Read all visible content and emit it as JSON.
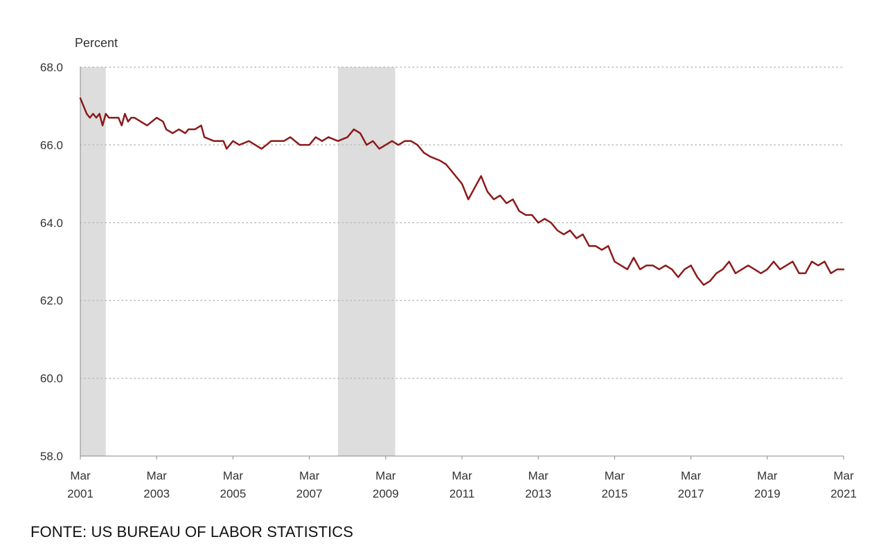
{
  "source_note": "FONTE: US BUREAU OF LABOR STATISTICS",
  "chart_data": {
    "type": "line",
    "ylabel": "Percent",
    "xlabel": "",
    "ylim": [
      58.0,
      68.0
    ],
    "yticks": [
      "68.0",
      "66.0",
      "64.0",
      "62.0",
      "60.0",
      "58.0"
    ],
    "yticks_values": [
      68,
      66,
      64,
      62,
      60,
      58
    ],
    "grid": "horizontal dotted",
    "x_start": "2001-03",
    "x_end": "2021-03",
    "xticks": [
      {
        "date": "2001-03",
        "month": "Mar",
        "year": "2001"
      },
      {
        "date": "2003-03",
        "month": "Mar",
        "year": "2003"
      },
      {
        "date": "2005-03",
        "month": "Mar",
        "year": "2005"
      },
      {
        "date": "2007-03",
        "month": "Mar",
        "year": "2007"
      },
      {
        "date": "2009-03",
        "month": "Mar",
        "year": "2009"
      },
      {
        "date": "2011-03",
        "month": "Mar",
        "year": "2011"
      },
      {
        "date": "2013-03",
        "month": "Mar",
        "year": "2013"
      },
      {
        "date": "2015-03",
        "month": "Mar",
        "year": "2015"
      },
      {
        "date": "2017-03",
        "month": "Mar",
        "year": "2017"
      },
      {
        "date": "2019-03",
        "month": "Mar",
        "year": "2019"
      },
      {
        "date": "2021-03",
        "month": "Mar",
        "year": "2021"
      }
    ],
    "shaded_periods": [
      {
        "start": "2001-03",
        "end": "2001-11"
      },
      {
        "start": "2007-12",
        "end": "2009-06"
      }
    ],
    "colors": {
      "line": "#8b1a1a",
      "shade": "#dddddd",
      "grid": "#bbbbbb",
      "axis": "#888888"
    },
    "series": [
      {
        "points": [
          [
            "2001-03",
            67.2
          ],
          [
            "2001-04",
            67.0
          ],
          [
            "2001-05",
            66.8
          ],
          [
            "2001-06",
            66.7
          ],
          [
            "2001-07",
            66.8
          ],
          [
            "2001-08",
            66.7
          ],
          [
            "2001-09",
            66.8
          ],
          [
            "2001-10",
            66.5
          ],
          [
            "2001-11",
            66.8
          ],
          [
            "2001-12",
            66.7
          ],
          [
            "2002-03",
            66.7
          ],
          [
            "2002-04",
            66.5
          ],
          [
            "2002-05",
            66.8
          ],
          [
            "2002-06",
            66.6
          ],
          [
            "2002-07",
            66.7
          ],
          [
            "2002-08",
            66.7
          ],
          [
            "2002-10",
            66.6
          ],
          [
            "2002-12",
            66.5
          ],
          [
            "2003-03",
            66.7
          ],
          [
            "2003-05",
            66.6
          ],
          [
            "2003-06",
            66.4
          ],
          [
            "2003-08",
            66.3
          ],
          [
            "2003-10",
            66.4
          ],
          [
            "2003-12",
            66.3
          ],
          [
            "2004-01",
            66.4
          ],
          [
            "2004-03",
            66.4
          ],
          [
            "2004-05",
            66.5
          ],
          [
            "2004-06",
            66.2
          ],
          [
            "2004-09",
            66.1
          ],
          [
            "2004-12",
            66.1
          ],
          [
            "2005-01",
            65.9
          ],
          [
            "2005-03",
            66.1
          ],
          [
            "2005-05",
            66.0
          ],
          [
            "2005-08",
            66.1
          ],
          [
            "2005-10",
            66.0
          ],
          [
            "2005-12",
            65.9
          ],
          [
            "2006-03",
            66.1
          ],
          [
            "2006-05",
            66.1
          ],
          [
            "2006-07",
            66.1
          ],
          [
            "2006-09",
            66.2
          ],
          [
            "2006-12",
            66.0
          ],
          [
            "2007-03",
            66.0
          ],
          [
            "2007-05",
            66.2
          ],
          [
            "2007-07",
            66.1
          ],
          [
            "2007-09",
            66.2
          ],
          [
            "2007-12",
            66.1
          ],
          [
            "2008-03",
            66.2
          ],
          [
            "2008-05",
            66.4
          ],
          [
            "2008-07",
            66.3
          ],
          [
            "2008-09",
            66.0
          ],
          [
            "2008-11",
            66.1
          ],
          [
            "2009-01",
            65.9
          ],
          [
            "2009-03",
            66.0
          ],
          [
            "2009-05",
            66.1
          ],
          [
            "2009-07",
            66.0
          ],
          [
            "2009-09",
            66.1
          ],
          [
            "2009-11",
            66.1
          ],
          [
            "2010-01",
            66.0
          ],
          [
            "2010-03",
            65.8
          ],
          [
            "2010-05",
            65.7
          ],
          [
            "2010-08",
            65.6
          ],
          [
            "2010-10",
            65.5
          ],
          [
            "2010-12",
            65.3
          ],
          [
            "2011-03",
            65.0
          ],
          [
            "2011-05",
            64.6
          ],
          [
            "2011-07",
            64.9
          ],
          [
            "2011-09",
            65.2
          ],
          [
            "2011-11",
            64.8
          ],
          [
            "2012-01",
            64.6
          ],
          [
            "2012-03",
            64.7
          ],
          [
            "2012-05",
            64.5
          ],
          [
            "2012-07",
            64.6
          ],
          [
            "2012-09",
            64.3
          ],
          [
            "2012-11",
            64.2
          ],
          [
            "2013-01",
            64.2
          ],
          [
            "2013-03",
            64.0
          ],
          [
            "2013-05",
            64.1
          ],
          [
            "2013-07",
            64.0
          ],
          [
            "2013-09",
            63.8
          ],
          [
            "2013-11",
            63.7
          ],
          [
            "2014-01",
            63.8
          ],
          [
            "2014-03",
            63.6
          ],
          [
            "2014-05",
            63.7
          ],
          [
            "2014-07",
            63.4
          ],
          [
            "2014-09",
            63.4
          ],
          [
            "2014-11",
            63.3
          ],
          [
            "2015-01",
            63.4
          ],
          [
            "2015-03",
            63.0
          ],
          [
            "2015-05",
            62.9
          ],
          [
            "2015-07",
            62.8
          ],
          [
            "2015-09",
            63.1
          ],
          [
            "2015-11",
            62.8
          ],
          [
            "2016-01",
            62.9
          ],
          [
            "2016-03",
            62.9
          ],
          [
            "2016-05",
            62.8
          ],
          [
            "2016-07",
            62.9
          ],
          [
            "2016-09",
            62.8
          ],
          [
            "2016-11",
            62.6
          ],
          [
            "2017-01",
            62.8
          ],
          [
            "2017-03",
            62.9
          ],
          [
            "2017-05",
            62.6
          ],
          [
            "2017-07",
            62.4
          ],
          [
            "2017-09",
            62.5
          ],
          [
            "2017-11",
            62.7
          ],
          [
            "2018-01",
            62.8
          ],
          [
            "2018-03",
            63.0
          ],
          [
            "2018-05",
            62.7
          ],
          [
            "2018-07",
            62.8
          ],
          [
            "2018-09",
            62.9
          ],
          [
            "2018-11",
            62.8
          ],
          [
            "2019-01",
            62.7
          ],
          [
            "2019-03",
            62.8
          ],
          [
            "2019-05",
            63.0
          ],
          [
            "2019-07",
            62.8
          ],
          [
            "2019-09",
            62.9
          ],
          [
            "2019-11",
            63.0
          ],
          [
            "2020-01",
            62.7
          ],
          [
            "2020-03",
            62.7
          ],
          [
            "2020-05",
            63.0
          ],
          [
            "2020-07",
            62.9
          ],
          [
            "2020-09",
            63.0
          ],
          [
            "2020-11",
            62.7
          ],
          [
            "2021-01",
            62.8
          ],
          [
            "2021-03",
            62.8
          ]
        ]
      }
    ]
  }
}
